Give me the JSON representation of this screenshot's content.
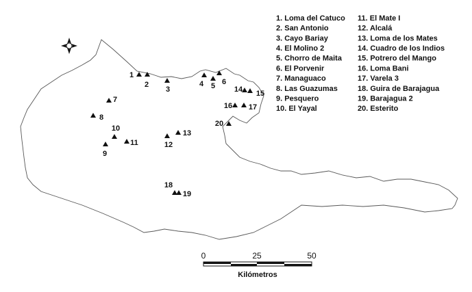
{
  "legend": [
    "1. Loma del Catuco",
    "2. San Antonio",
    "3. Cayo Bariay",
    "4. El Molino 2",
    "5. Chorro de Maita",
    "6. El Porvenir",
    "7. Managuaco",
    "8. Las Guazumas",
    "9. Pesquero",
    "10. El Yayal",
    "11. El Mate I",
    "12. Alcalá",
    "13. Loma de los Mates",
    "14. Cuadro de los Indios",
    "15. Potrero del Mango",
    "16. Loma Bani",
    "17. Varela 3",
    "18. Guira de Barajagua",
    "19. Barajagua 2",
    "20. Esterito"
  ],
  "sites": [
    "1",
    "2",
    "3",
    "4",
    "5",
    "6",
    "7",
    "8",
    "9",
    "10",
    "11",
    "12",
    "13",
    "14",
    "15",
    "16",
    "17",
    "18",
    "19",
    "20"
  ],
  "scale": {
    "ticks": [
      "0",
      "25",
      "50"
    ],
    "unit": "Kilómetros"
  }
}
